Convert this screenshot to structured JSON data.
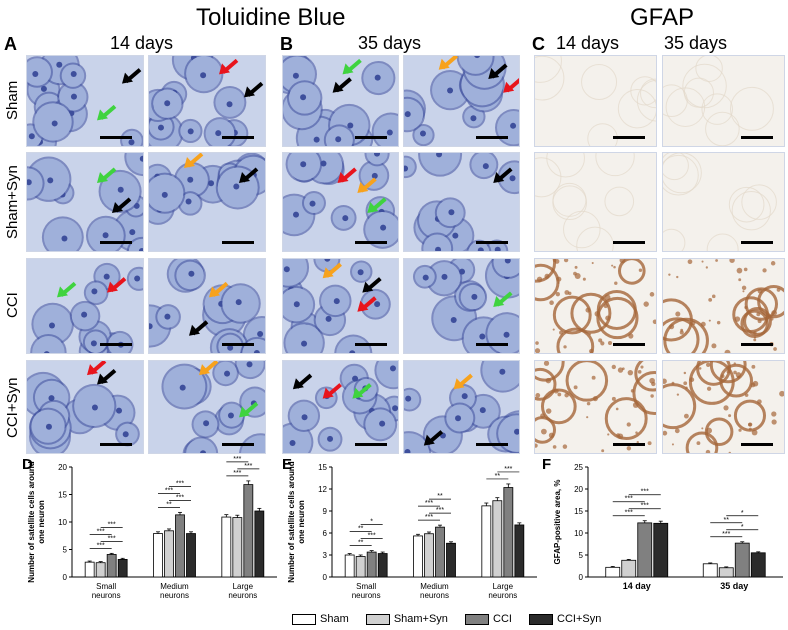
{
  "headers": {
    "toluidine": "Toluidine Blue",
    "gfap": "GFAP",
    "panel_a": "A",
    "panel_b": "B",
    "panel_c": "C",
    "a_sub": "14 days",
    "b_sub": "35 days",
    "c_sub1": "14 days",
    "c_sub2": "35 days"
  },
  "rows": [
    "Sham",
    "Sham+Syn",
    "CCI",
    "CCI+Syn"
  ],
  "colors": {
    "tb_bg": "#c9d3ea",
    "tb_cell": "#9fb0da",
    "tb_dark": "#3e4f9c",
    "gfap_light": "#f4f1ec",
    "gfap_brown": "#a5673a",
    "arrow_red": "#e8141c",
    "arrow_black": "#000000",
    "arrow_green": "#3fd33f",
    "arrow_orange": "#f7a21d",
    "sham": "#ffffff",
    "sham_syn": "#d0d0d0",
    "cci": "#808080",
    "cci_syn": "#2b2b2b"
  },
  "legend": [
    "Sham",
    "Sham+Syn",
    "CCI",
    "CCI+Syn"
  ],
  "chart_data": [
    {
      "type": "bar",
      "panel": "D",
      "categories": [
        "Small neurons",
        "Medium neurons",
        "Large neurons"
      ],
      "ylabel": "Number of satellite cells around one neuron",
      "ylim": [
        0,
        20
      ],
      "yticks": [
        0,
        5,
        10,
        15,
        20
      ],
      "series": [
        {
          "name": "Sham",
          "values": [
            2.7,
            7.9,
            10.9
          ]
        },
        {
          "name": "Sham+Syn",
          "values": [
            2.6,
            8.4,
            10.8
          ]
        },
        {
          "name": "CCI",
          "values": [
            4.1,
            11.3,
            16.8
          ]
        },
        {
          "name": "CCI+Syn",
          "values": [
            3.2,
            7.9,
            12.0
          ]
        }
      ],
      "annotations": [
        "***",
        "***",
        "***",
        "***",
        "**",
        "***",
        "***",
        "***",
        "***",
        "***",
        "***"
      ]
    },
    {
      "type": "bar",
      "panel": "E",
      "categories": [
        "Small neurons",
        "Medium neurons",
        "Large neurons"
      ],
      "ylabel": "Number of satellite cells around one neuron",
      "ylim": [
        0,
        15
      ],
      "yticks": [
        0,
        3,
        6,
        9,
        12,
        15
      ],
      "series": [
        {
          "name": "Sham",
          "values": [
            3.0,
            5.6,
            9.7
          ]
        },
        {
          "name": "Sham+Syn",
          "values": [
            2.8,
            5.9,
            10.4
          ]
        },
        {
          "name": "CCI",
          "values": [
            3.4,
            6.8,
            12.2
          ]
        },
        {
          "name": "CCI+Syn",
          "values": [
            3.2,
            4.6,
            7.1
          ]
        }
      ],
      "annotations": [
        "**",
        "***",
        "**",
        "*",
        "***",
        "***",
        "***",
        "**",
        "**",
        "***"
      ]
    },
    {
      "type": "bar",
      "panel": "F",
      "categories": [
        "14 day",
        "35 day"
      ],
      "ylabel": "GFAP-positive area, %",
      "ylim": [
        0,
        25
      ],
      "yticks": [
        0,
        5,
        10,
        15,
        20,
        25
      ],
      "series": [
        {
          "name": "Sham",
          "values": [
            2.2,
            3.0
          ]
        },
        {
          "name": "Sham+Syn",
          "values": [
            3.8,
            2.1
          ]
        },
        {
          "name": "CCI",
          "values": [
            12.3,
            7.7
          ]
        },
        {
          "name": "CCI+Syn",
          "values": [
            12.2,
            5.5
          ]
        }
      ],
      "annotations": [
        "***",
        "***",
        "***",
        "***",
        "***",
        "*",
        "**",
        "*"
      ]
    }
  ]
}
